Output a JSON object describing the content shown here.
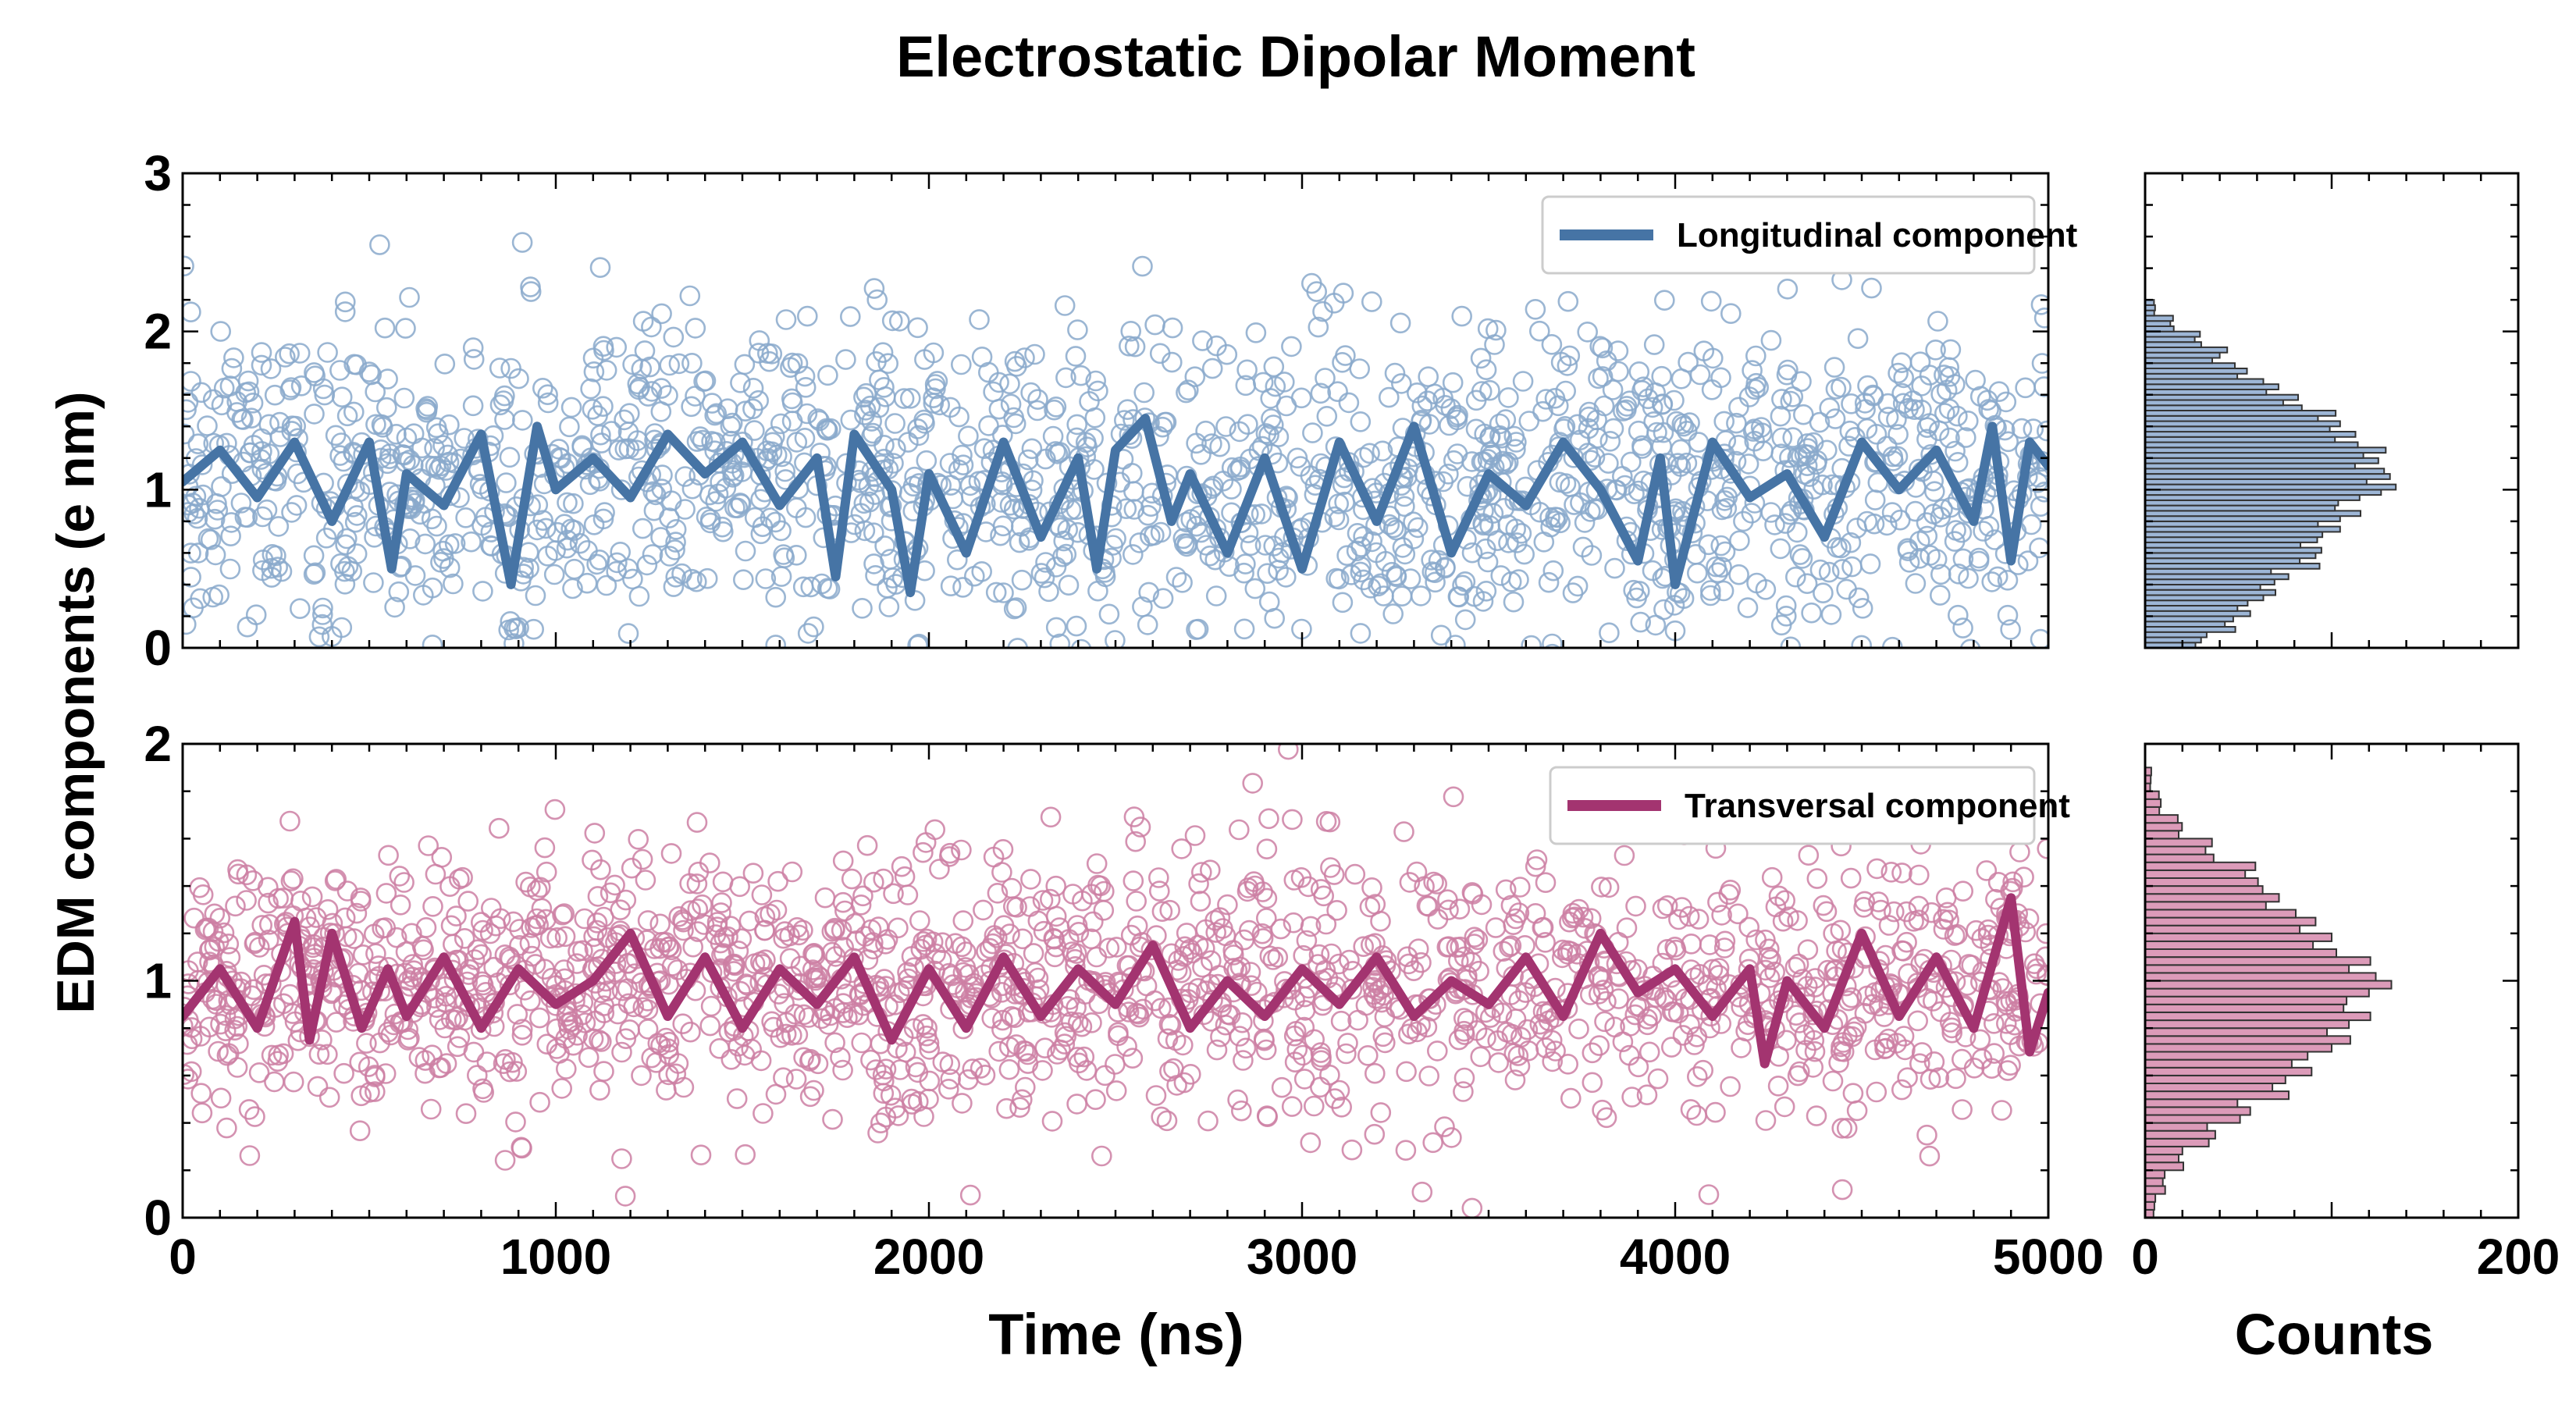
{
  "chart_data": {
    "type": "scatter",
    "title": "Electrostatic Dipolar Moment",
    "shared_ylabel": "EDM components (e nm)",
    "xlabel": "Time (ns)",
    "hist_xlabel": "Counts",
    "panels": [
      {
        "name": "longitudinal",
        "legend": "Longitudinal component",
        "color": "#4674a5",
        "scatter_color": "#8aa9cb",
        "hist_color": "#9db6d6",
        "xlim": [
          0,
          5000
        ],
        "ylim": [
          0,
          3
        ],
        "xticks": [
          "0",
          "1000",
          "2000",
          "3000",
          "4000",
          "5000"
        ],
        "yticks": [
          "0",
          "1",
          "2",
          "3"
        ],
        "mean": 1.05,
        "spread": 0.5,
        "running_mean": {
          "x": [
            0,
            100,
            200,
            300,
            400,
            500,
            560,
            600,
            700,
            800,
            880,
            950,
            1000,
            1100,
            1200,
            1300,
            1400,
            1500,
            1600,
            1700,
            1750,
            1800,
            1900,
            1950,
            2000,
            2100,
            2200,
            2300,
            2400,
            2450,
            2500,
            2580,
            2650,
            2700,
            2800,
            2900,
            3000,
            3100,
            3200,
            3300,
            3400,
            3500,
            3600,
            3700,
            3800,
            3900,
            3960,
            4000,
            4100,
            4200,
            4300,
            4400,
            4500,
            4600,
            4700,
            4800,
            4850,
            4900,
            4950,
            5000
          ],
          "y": [
            1.05,
            1.25,
            0.95,
            1.3,
            0.8,
            1.3,
            0.5,
            1.1,
            0.9,
            1.35,
            0.4,
            1.4,
            1.0,
            1.2,
            0.95,
            1.35,
            1.1,
            1.3,
            0.9,
            1.2,
            0.45,
            1.35,
            1.0,
            0.35,
            1.1,
            0.6,
            1.3,
            0.7,
            1.2,
            0.5,
            1.25,
            1.45,
            0.8,
            1.1,
            0.6,
            1.2,
            0.5,
            1.3,
            0.8,
            1.4,
            0.6,
            1.1,
            0.9,
            1.3,
            1.0,
            0.55,
            1.2,
            0.4,
            1.3,
            0.95,
            1.1,
            0.7,
            1.3,
            1.0,
            1.25,
            0.8,
            1.4,
            0.55,
            1.3,
            1.15
          ]
        },
        "histogram": {
          "bin_centers": [
            0.05,
            0.15,
            0.25,
            0.35,
            0.45,
            0.55,
            0.65,
            0.75,
            0.85,
            0.95,
            1.05,
            1.15,
            1.25,
            1.35,
            1.45,
            1.55,
            1.65,
            1.75,
            1.85,
            1.95,
            2.05,
            2.15
          ],
          "counts": [
            30,
            45,
            55,
            65,
            75,
            85,
            90,
            95,
            110,
            115,
            125,
            125,
            120,
            110,
            95,
            80,
            65,
            52,
            40,
            28,
            15,
            5
          ]
        }
      },
      {
        "name": "transversal",
        "legend": "Transversal component",
        "color": "#a33470",
        "scatter_color": "#cc7fa3",
        "hist_color": "#dc9bb9",
        "xlim": [
          0,
          5000
        ],
        "ylim": [
          0,
          2
        ],
        "xticks": [
          "0",
          "1000",
          "2000",
          "3000",
          "4000",
          "5000"
        ],
        "yticks": [
          "0",
          "1",
          "2"
        ],
        "mean": 0.98,
        "spread": 0.28,
        "running_mean": {
          "x": [
            0,
            100,
            200,
            300,
            340,
            400,
            480,
            550,
            600,
            700,
            800,
            900,
            1000,
            1100,
            1200,
            1300,
            1400,
            1500,
            1600,
            1700,
            1800,
            1900,
            2000,
            2100,
            2200,
            2300,
            2400,
            2500,
            2600,
            2700,
            2800,
            2900,
            3000,
            3100,
            3200,
            3300,
            3400,
            3500,
            3600,
            3700,
            3800,
            3900,
            4000,
            4100,
            4200,
            4240,
            4300,
            4400,
            4500,
            4600,
            4700,
            4800,
            4900,
            4950,
            5000
          ],
          "y": [
            0.85,
            1.05,
            0.8,
            1.25,
            0.75,
            1.2,
            0.8,
            1.05,
            0.85,
            1.1,
            0.8,
            1.05,
            0.9,
            1.0,
            1.2,
            0.85,
            1.1,
            0.8,
            1.05,
            0.9,
            1.1,
            0.75,
            1.05,
            0.8,
            1.1,
            0.85,
            1.05,
            0.9,
            1.15,
            0.8,
            1.0,
            0.85,
            1.05,
            0.9,
            1.1,
            0.85,
            1.0,
            0.9,
            1.1,
            0.85,
            1.2,
            0.95,
            1.05,
            0.85,
            1.05,
            0.65,
            1.0,
            0.8,
            1.2,
            0.85,
            1.1,
            0.8,
            1.35,
            0.7,
            0.95
          ]
        },
        "histogram": {
          "bin_centers": [
            0.05,
            0.15,
            0.25,
            0.35,
            0.45,
            0.55,
            0.65,
            0.75,
            0.85,
            0.95,
            1.05,
            1.15,
            1.25,
            1.35,
            1.45,
            1.55,
            1.65,
            1.75,
            1.85
          ],
          "counts": [
            5,
            10,
            20,
            35,
            55,
            70,
            85,
            100,
            115,
            120,
            115,
            100,
            85,
            70,
            55,
            35,
            18,
            8,
            3
          ]
        }
      }
    ],
    "hist_xlim": [
      0,
      200
    ],
    "hist_xticks": [
      "0",
      "200"
    ]
  }
}
